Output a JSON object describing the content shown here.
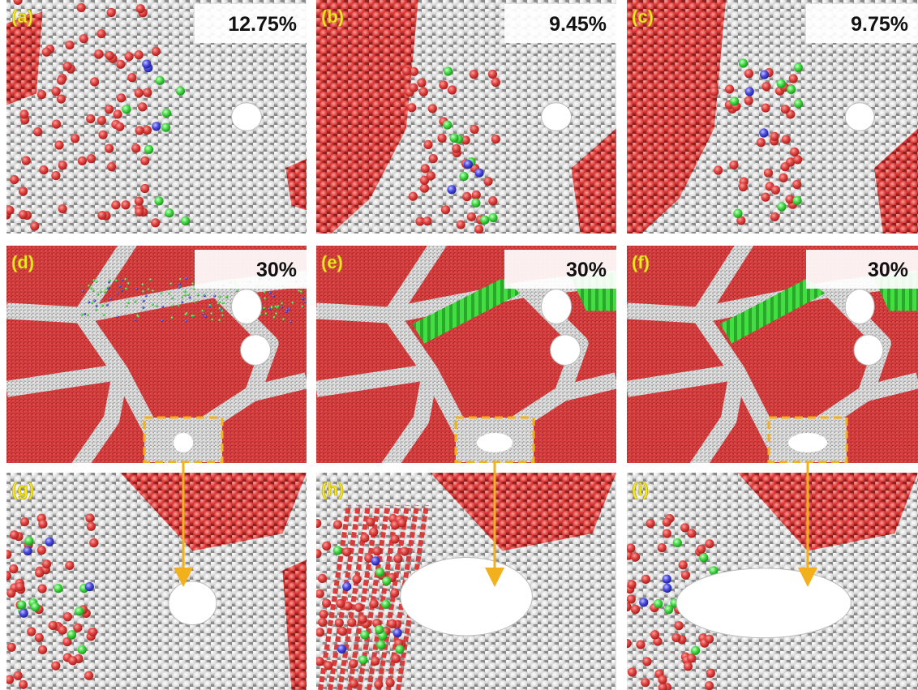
{
  "panels": [
    {
      "label": "(a)",
      "strain": "12.75%"
    },
    {
      "label": "(b)",
      "strain": "9.45%"
    },
    {
      "label": "(c)",
      "strain": "9.75%"
    },
    {
      "label": "(d)",
      "strain": "30%"
    },
    {
      "label": "(e)",
      "strain": "30%"
    },
    {
      "label": "(f)",
      "strain": "30%"
    },
    {
      "label": "(g)"
    },
    {
      "label": "(h)"
    },
    {
      "label": "(i)"
    }
  ]
}
